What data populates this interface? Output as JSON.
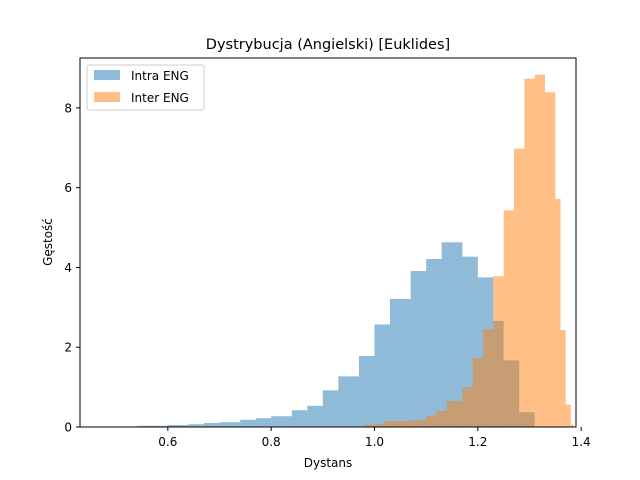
{
  "chart_data": {
    "type": "histogram",
    "title": "Dystrybucja (Angielski) [Euklides]",
    "xlabel": "Dystans",
    "ylabel": "Gęstość",
    "xlim": [
      0.43,
      1.39
    ],
    "ylim": [
      0,
      9.25
    ],
    "xticks": [
      0.6,
      0.8,
      1.0,
      1.2,
      1.4
    ],
    "xtick_labels": [
      "0.6",
      "0.8",
      "1.0",
      "1.2",
      "1.4"
    ],
    "yticks": [
      0,
      2,
      4,
      6,
      8
    ],
    "ytick_labels": [
      "0",
      "2",
      "4",
      "6",
      "8"
    ],
    "grid": false,
    "legend_position": "top-left",
    "series": [
      {
        "name": "Intra ENG",
        "color": "#1f77b4",
        "alpha": 0.5,
        "bins": [
          [
            0.44,
            0.47,
            0.005
          ],
          [
            0.47,
            0.5,
            0.005
          ],
          [
            0.5,
            0.54,
            0.005
          ],
          [
            0.54,
            0.57,
            0.03
          ],
          [
            0.57,
            0.6,
            0.03
          ],
          [
            0.6,
            0.64,
            0.05
          ],
          [
            0.64,
            0.67,
            0.07
          ],
          [
            0.67,
            0.7,
            0.1
          ],
          [
            0.7,
            0.74,
            0.12
          ],
          [
            0.74,
            0.77,
            0.18
          ],
          [
            0.77,
            0.8,
            0.22
          ],
          [
            0.8,
            0.84,
            0.27
          ],
          [
            0.84,
            0.87,
            0.42
          ],
          [
            0.87,
            0.9,
            0.53
          ],
          [
            0.9,
            0.93,
            0.92
          ],
          [
            0.93,
            0.97,
            1.27
          ],
          [
            0.97,
            1.0,
            1.78
          ],
          [
            1.0,
            1.03,
            2.57
          ],
          [
            1.03,
            1.07,
            3.21
          ],
          [
            1.07,
            1.1,
            3.91
          ],
          [
            1.1,
            1.13,
            4.21
          ],
          [
            1.13,
            1.17,
            4.63
          ],
          [
            1.17,
            1.2,
            4.27
          ],
          [
            1.2,
            1.23,
            3.75
          ],
          [
            1.23,
            1.25,
            2.66
          ],
          [
            1.25,
            1.28,
            1.67
          ],
          [
            1.28,
            1.31,
            0.37
          ]
        ]
      },
      {
        "name": "Inter ENG",
        "color": "#ff7f0e",
        "alpha": 0.5,
        "bins": [
          [
            0.95,
            0.98,
            0.005
          ],
          [
            0.98,
            1.0,
            0.05
          ],
          [
            1.0,
            1.02,
            0.07
          ],
          [
            1.02,
            1.05,
            0.15
          ],
          [
            1.05,
            1.07,
            0.15
          ],
          [
            1.07,
            1.1,
            0.17
          ],
          [
            1.1,
            1.12,
            0.28
          ],
          [
            1.12,
            1.14,
            0.4
          ],
          [
            1.14,
            1.17,
            0.65
          ],
          [
            1.17,
            1.19,
            1.0
          ],
          [
            1.19,
            1.21,
            1.73
          ],
          [
            1.21,
            1.23,
            2.45
          ],
          [
            1.23,
            1.25,
            3.78
          ],
          [
            1.25,
            1.27,
            5.43
          ],
          [
            1.27,
            1.29,
            6.98
          ],
          [
            1.29,
            1.31,
            8.73
          ],
          [
            1.31,
            1.33,
            8.83
          ],
          [
            1.33,
            1.35,
            8.39
          ],
          [
            1.35,
            1.36,
            5.72
          ],
          [
            1.36,
            1.37,
            2.43
          ],
          [
            1.37,
            1.38,
            0.56
          ],
          [
            1.38,
            1.385,
            0.06
          ]
        ]
      }
    ]
  }
}
